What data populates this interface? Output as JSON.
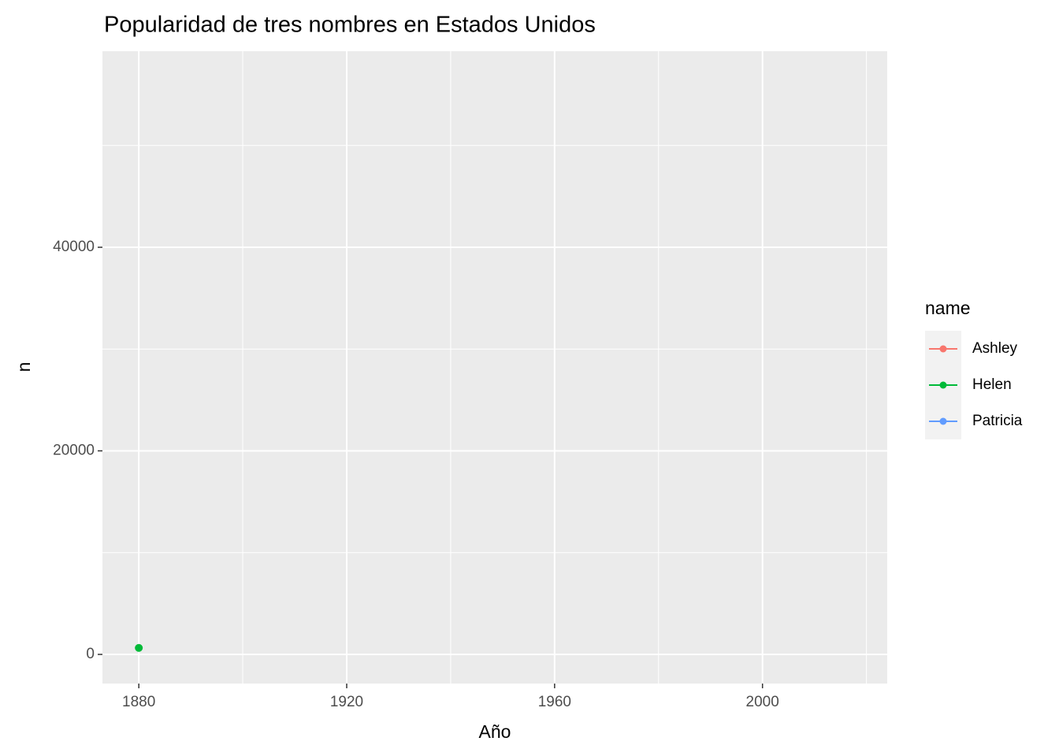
{
  "chart_data": {
    "type": "line",
    "title": "Popularidad de tres nombres en Estados Unidos",
    "x_label": "Año",
    "y_label": "n",
    "x": [
      1880
    ],
    "series": [
      {
        "name": "Ashley",
        "color": "#F8766D",
        "values": [
          null
        ]
      },
      {
        "name": "Helen",
        "color": "#00BA38",
        "values": [
          636
        ]
      },
      {
        "name": "Patricia",
        "color": "#619CFF",
        "values": [
          null
        ]
      }
    ],
    "xlim": [
      1873,
      2024
    ],
    "ylim": [
      -2863,
      59265
    ],
    "xticks": [
      1880,
      1920,
      1960,
      2000
    ],
    "yticks": [
      0,
      20000,
      40000
    ],
    "x_minor_grid": [
      1900,
      1940,
      1980,
      2020
    ],
    "y_minor_grid": [
      10000,
      30000,
      50000
    ],
    "legend_title": "name",
    "legend_position": "right",
    "grid": true
  }
}
